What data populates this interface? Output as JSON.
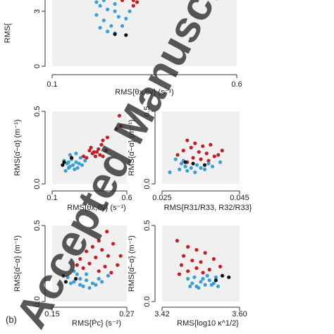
{
  "panel_label": "(b)",
  "watermark": "Accepted Manuscript",
  "colors": {
    "red": "#c41e24",
    "blue": "#3b9fd6",
    "black": "#111111",
    "panel_bg": "#f0f0f0",
    "axis": "#333333"
  },
  "chart_data": [
    {
      "type": "scatter",
      "title": "",
      "xlabel": "RMS{θx,θy} (s⁻¹)",
      "ylabel": "RMS{",
      "xlim": [
        0.1,
        0.6
      ],
      "ylim": [
        0,
        4
      ],
      "xticks": [
        "0.1",
        "0.6"
      ],
      "yticks": [
        "0",
        "3"
      ],
      "series": [
        {
          "color": "red",
          "points": [
            [
              0.29,
              3.6
            ],
            [
              0.33,
              3.5
            ],
            [
              0.32,
              3.6
            ],
            [
              0.29,
              3.8
            ],
            [
              0.43,
              3.7
            ],
            [
              0.44,
              3.9
            ],
            [
              0.32,
              3.3
            ]
          ]
        },
        {
          "color": "blue",
          "points": [
            [
              0.22,
              3.5
            ],
            [
              0.24,
              3.6
            ],
            [
              0.26,
              3.7
            ],
            [
              0.23,
              3.3
            ],
            [
              0.25,
              3.1
            ],
            [
              0.27,
              3.0
            ],
            [
              0.28,
              2.7
            ],
            [
              0.24,
              2.5
            ],
            [
              0.26,
              2.2
            ],
            [
              0.25,
              1.9
            ],
            [
              0.23,
              2.1
            ],
            [
              0.27,
              1.8
            ],
            [
              0.29,
              2.2
            ],
            [
              0.3,
              2.6
            ],
            [
              0.22,
              2.8
            ],
            [
              0.31,
              3.0
            ],
            [
              0.24,
              3.9
            ],
            [
              0.27,
              3.4
            ]
          ]
        },
        {
          "color": "black",
          "points": [
            [
              0.205,
              3.7
            ],
            [
              0.27,
              1.75
            ],
            [
              0.3,
              1.7
            ]
          ]
        }
      ]
    },
    {
      "type": "scatter",
      "title": "",
      "xlabel": "RMS{θx,θy} (s⁻¹)",
      "ylabel": "RMS{α̂−α} (m⁻¹)",
      "xlim": [
        0.1,
        0.6
      ],
      "ylim": [
        0,
        0.5
      ],
      "xticks": [
        "0.1",
        "0.6"
      ],
      "yticks": [
        "0.0",
        "0.5"
      ],
      "series": [
        {
          "color": "red",
          "points": [
            [
              0.55,
              0.47
            ],
            [
              0.56,
              0.4
            ],
            [
              0.53,
              0.38
            ],
            [
              0.47,
              0.32
            ],
            [
              0.44,
              0.3
            ],
            [
              0.41,
              0.24
            ],
            [
              0.43,
              0.27
            ],
            [
              0.38,
              0.22
            ],
            [
              0.35,
              0.23
            ],
            [
              0.36,
              0.25
            ],
            [
              0.4,
              0.22
            ],
            [
              0.42,
              0.2
            ],
            [
              0.46,
              0.23
            ],
            [
              0.33,
              0.18
            ],
            [
              0.39,
              0.19
            ],
            [
              0.37,
              0.21
            ],
            [
              0.44,
              0.19
            ],
            [
              0.31,
              0.19
            ]
          ]
        },
        {
          "color": "blue",
          "points": [
            [
              0.18,
              0.16
            ],
            [
              0.2,
              0.14
            ],
            [
              0.22,
              0.12
            ],
            [
              0.25,
              0.1
            ],
            [
              0.21,
              0.11
            ],
            [
              0.26,
              0.15
            ],
            [
              0.28,
              0.14
            ],
            [
              0.23,
              0.17
            ],
            [
              0.19,
              0.09
            ],
            [
              0.24,
              0.13
            ],
            [
              0.27,
              0.11
            ],
            [
              0.3,
              0.13
            ],
            [
              0.32,
              0.16
            ],
            [
              0.22,
              0.2
            ],
            [
              0.29,
              0.18
            ],
            [
              0.26,
              0.21
            ],
            [
              0.21,
              0.15
            ]
          ]
        },
        {
          "color": "black",
          "points": [
            [
              0.17,
              0.13
            ],
            [
              0.18,
              0.15
            ],
            [
              0.23,
              0.18
            ]
          ]
        }
      ]
    },
    {
      "type": "scatter",
      "title": "",
      "xlabel": "RMS{R31/R33, R32/R33}",
      "ylabel": "RMS{α̂−α} (m⁻¹)",
      "xlim": [
        0.025,
        0.045
      ],
      "ylim": [
        0,
        0.5
      ],
      "xticks": [
        "0.025",
        "0.045"
      ],
      "yticks": [
        "0.0",
        "0.5"
      ],
      "series": [
        {
          "color": "red",
          "points": [
            [
              0.0315,
              0.3
            ],
            [
              0.0335,
              0.28
            ],
            [
              0.0375,
              0.27
            ],
            [
              0.0405,
              0.23
            ],
            [
              0.0395,
              0.2
            ],
            [
              0.0345,
              0.22
            ],
            [
              0.0365,
              0.21
            ],
            [
              0.0325,
              0.25
            ],
            [
              0.0305,
              0.23
            ],
            [
              0.0355,
              0.26
            ],
            [
              0.0385,
              0.19
            ],
            [
              0.029,
              0.2
            ],
            [
              0.033,
              0.18
            ],
            [
              0.035,
              0.17
            ],
            [
              0.0315,
              0.15
            ],
            [
              0.037,
              0.16
            ]
          ]
        },
        {
          "color": "blue",
          "points": [
            [
              0.0285,
              0.17
            ],
            [
              0.03,
              0.14
            ],
            [
              0.031,
              0.12
            ],
            [
              0.0325,
              0.11
            ],
            [
              0.034,
              0.13
            ],
            [
              0.036,
              0.1
            ],
            [
              0.038,
              0.12
            ],
            [
              0.04,
              0.15
            ],
            [
              0.027,
              0.08
            ],
            [
              0.0295,
              0.1
            ],
            [
              0.0315,
              0.09
            ],
            [
              0.0335,
              0.08
            ],
            [
              0.035,
              0.11
            ],
            [
              0.0305,
              0.16
            ],
            [
              0.037,
              0.14
            ]
          ]
        },
        {
          "color": "black",
          "points": [
            [
              0.031,
              0.15
            ],
            [
              0.033,
              0.14
            ],
            [
              0.036,
              0.13
            ]
          ]
        }
      ]
    },
    {
      "type": "scatter",
      "title": "",
      "xlabel": "RMS{Ṗc} (s⁻²)",
      "ylabel": "RMS{α̂−α} (m⁻¹)",
      "xlim": [
        0.15,
        0.27
      ],
      "ylim": [
        0,
        0.5
      ],
      "xticks": [
        "0.15",
        "0.27"
      ],
      "yticks": [
        "0.0",
        "0.5"
      ],
      "series": [
        {
          "color": "red",
          "points": [
            [
              0.238,
              0.46
            ],
            [
              0.225,
              0.4
            ],
            [
              0.248,
              0.38
            ],
            [
              0.215,
              0.36
            ],
            [
              0.23,
              0.34
            ],
            [
              0.205,
              0.33
            ],
            [
              0.24,
              0.3
            ],
            [
              0.22,
              0.29
            ],
            [
              0.195,
              0.28
            ],
            [
              0.21,
              0.25
            ],
            [
              0.255,
              0.24
            ],
            [
              0.235,
              0.23
            ],
            [
              0.2,
              0.22
            ],
            [
              0.225,
              0.2
            ],
            [
              0.245,
              0.19
            ],
            [
              0.19,
              0.24
            ],
            [
              0.26,
              0.3
            ]
          ]
        },
        {
          "color": "blue",
          "points": [
            [
              0.175,
              0.16
            ],
            [
              0.185,
              0.13
            ],
            [
              0.195,
              0.11
            ],
            [
              0.205,
              0.14
            ],
            [
              0.215,
              0.12
            ],
            [
              0.225,
              0.15
            ],
            [
              0.19,
              0.18
            ],
            [
              0.2,
              0.1
            ],
            [
              0.21,
              0.09
            ],
            [
              0.22,
              0.11
            ],
            [
              0.23,
              0.13
            ],
            [
              0.18,
              0.12
            ],
            [
              0.195,
              0.15
            ],
            [
              0.205,
              0.18
            ],
            [
              0.24,
              0.17
            ],
            [
              0.185,
              0.2
            ]
          ]
        },
        {
          "color": "black",
          "points": [
            [
              0.168,
              0.17
            ],
            [
              0.172,
              0.13
            ],
            [
              0.188,
              0.15
            ]
          ]
        }
      ]
    },
    {
      "type": "scatter",
      "title": "",
      "xlabel": "RMS{log10 κ^1/2}",
      "ylabel": "RMS{α̂−α} (m⁻¹)",
      "xlim": [
        3.42,
        3.6
      ],
      "ylim": [
        0,
        0.5
      ],
      "xticks": [
        "3.42",
        "3.60"
      ],
      "yticks": [
        "0.0",
        "0.5"
      ],
      "series": [
        {
          "color": "red",
          "points": [
            [
              3.455,
              0.4
            ],
            [
              3.48,
              0.36
            ],
            [
              3.5,
              0.34
            ],
            [
              3.47,
              0.3
            ],
            [
              3.52,
              0.32
            ],
            [
              3.49,
              0.27
            ],
            [
              3.51,
              0.26
            ],
            [
              3.54,
              0.28
            ],
            [
              3.465,
              0.24
            ],
            [
              3.5,
              0.22
            ],
            [
              3.53,
              0.21
            ],
            [
              3.48,
              0.2
            ],
            [
              3.555,
              0.23
            ],
            [
              3.46,
              0.18
            ],
            [
              3.515,
              0.19
            ]
          ]
        },
        {
          "color": "blue",
          "points": [
            [
              3.48,
              0.15
            ],
            [
              3.49,
              0.12
            ],
            [
              3.5,
              0.1
            ],
            [
              3.51,
              0.13
            ],
            [
              3.52,
              0.11
            ],
            [
              3.53,
              0.14
            ],
            [
              3.54,
              0.12
            ],
            [
              3.55,
              0.1
            ],
            [
              3.495,
              0.16
            ],
            [
              3.505,
              0.09
            ],
            [
              3.515,
              0.15
            ],
            [
              3.525,
              0.17
            ],
            [
              3.535,
              0.11
            ],
            [
              3.545,
              0.16
            ],
            [
              3.485,
              0.1
            ]
          ]
        },
        {
          "color": "black",
          "points": [
            [
              3.56,
              0.17
            ],
            [
              3.575,
              0.16
            ],
            [
              3.545,
              0.14
            ]
          ]
        }
      ]
    }
  ]
}
